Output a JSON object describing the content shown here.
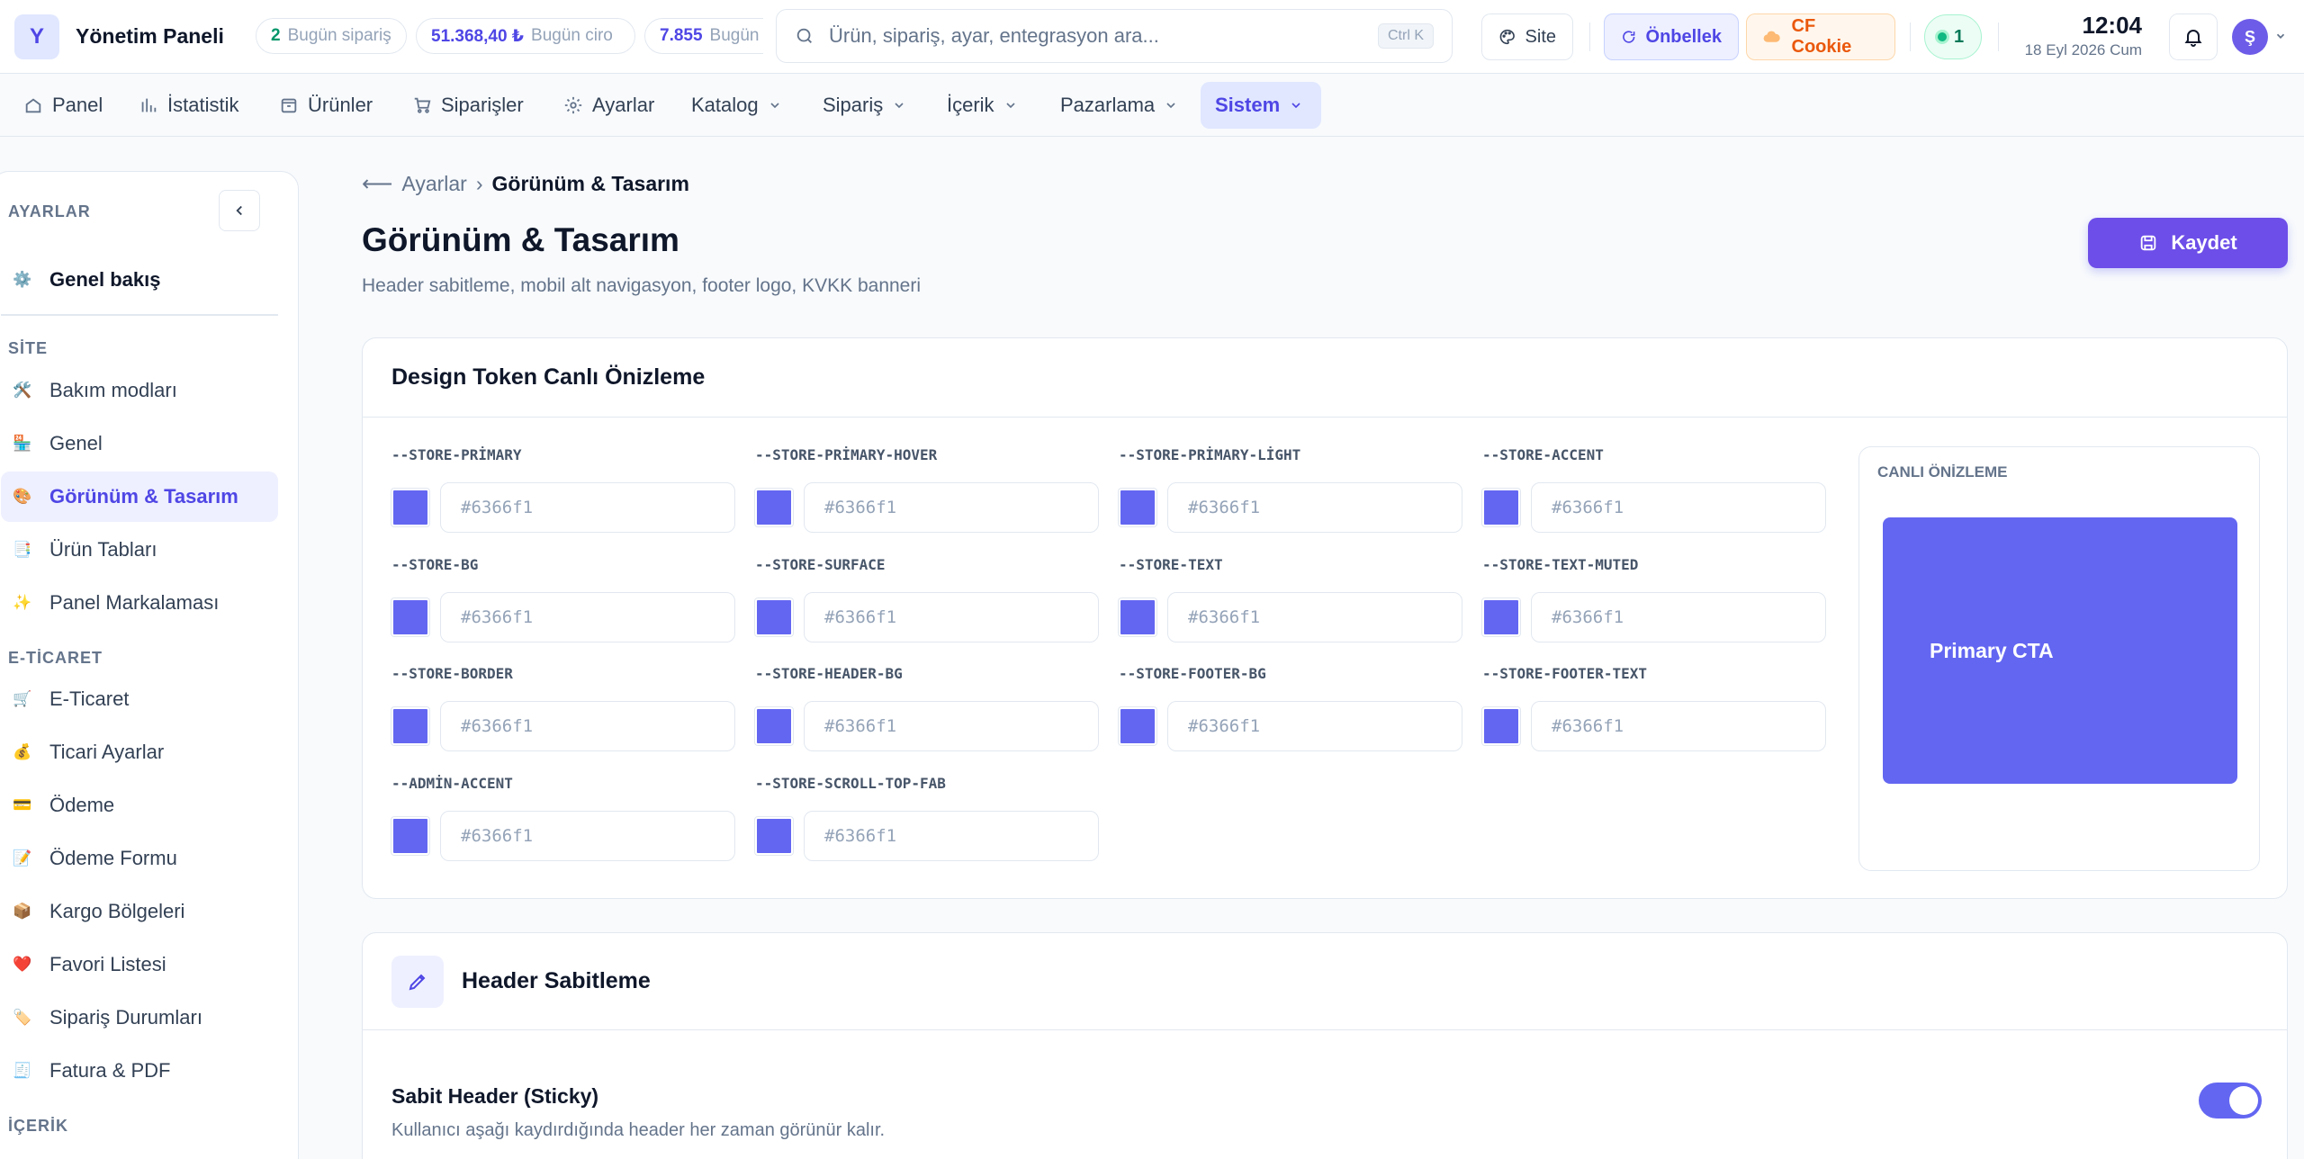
{
  "app": {
    "logo_letter": "Y",
    "title": "Yönetim Paneli"
  },
  "stats": [
    {
      "value": "2",
      "label": "Bugün sipariş",
      "color": "#059669"
    },
    {
      "value": "51.368,40 ₺",
      "label": "Bugün ciro",
      "color": "#4f46e5"
    },
    {
      "value": "7.855",
      "label": "Bugün",
      "color": "#4f46e5"
    }
  ],
  "search": {
    "placeholder": "Ürün, sipariş, ayar, entegrasyon ara...",
    "shortcut": "Ctrl K"
  },
  "toolbar": {
    "site": "Site",
    "cache": "Önbellek",
    "cf_cookie": "CF Cookie",
    "online_count": "1"
  },
  "clock": {
    "time": "12:04",
    "date": "18 Eyl 2026 Cum"
  },
  "user": {
    "avatar_letter": "Ş"
  },
  "nav": [
    {
      "label": "Panel",
      "icon": "home-icon"
    },
    {
      "label": "İstatistik",
      "icon": "stats-icon"
    },
    {
      "label": "Ürünler",
      "icon": "box-icon"
    },
    {
      "label": "Siparişler",
      "icon": "cart-icon"
    },
    {
      "label": "Ayarlar",
      "icon": "gear-icon"
    },
    {
      "label": "Katalog",
      "icon": "chevron-down-icon"
    },
    {
      "label": "Sipariş",
      "icon": "chevron-down-icon"
    },
    {
      "label": "İçerik",
      "icon": "chevron-down-icon"
    },
    {
      "label": "Pazarlama",
      "icon": "chevron-down-icon"
    },
    {
      "label": "Sistem",
      "icon": "chevron-down-icon"
    }
  ],
  "sidebar": {
    "header": "AYARLAR",
    "overview": {
      "label": "Genel bakış",
      "icon": "⚙️"
    },
    "sections": [
      {
        "title": "SİTE",
        "items": [
          {
            "label": "Bakım modları",
            "icon": "🛠️"
          },
          {
            "label": "Genel",
            "icon": "🏪"
          },
          {
            "label": "Görünüm & Tasarım",
            "icon": "🎨"
          },
          {
            "label": "Ürün Tabları",
            "icon": "📑"
          },
          {
            "label": "Panel Markalaması",
            "icon": "✨"
          }
        ]
      },
      {
        "title": "E-TİCARET",
        "items": [
          {
            "label": "E-Ticaret",
            "icon": "🛒"
          },
          {
            "label": "Ticari Ayarlar",
            "icon": "💰"
          },
          {
            "label": "Ödeme",
            "icon": "💳"
          },
          {
            "label": "Ödeme Formu",
            "icon": "📝"
          },
          {
            "label": "Kargo Bölgeleri",
            "icon": "📦"
          },
          {
            "label": "Favori Listesi",
            "icon": "❤️"
          },
          {
            "label": "Sipariş Durumları",
            "icon": "🏷️"
          },
          {
            "label": "Fatura & PDF",
            "icon": "🧾"
          }
        ]
      },
      {
        "title": "İÇERİK",
        "items": []
      }
    ]
  },
  "breadcrumb": {
    "back": "Ayarlar",
    "separator": "›",
    "current": "Görünüm & Tasarım"
  },
  "page": {
    "title": "Görünüm & Tasarım",
    "subtitle": "Header sabitleme, mobil alt navigasyon, footer logo, KVKK banneri",
    "save_label": "Kaydet"
  },
  "tokens_card": {
    "title": "Design Token Canlı Önizleme",
    "tokens": [
      {
        "name": "--STORE-PRİMARY",
        "value": "#6366f1"
      },
      {
        "name": "--STORE-PRİMARY-HOVER",
        "value": "#6366f1"
      },
      {
        "name": "--STORE-PRİMARY-LİGHT",
        "value": "#6366f1"
      },
      {
        "name": "--STORE-ACCENT",
        "value": "#6366f1"
      },
      {
        "name": "--STORE-BG",
        "value": "#6366f1"
      },
      {
        "name": "--STORE-SURFACE",
        "value": "#6366f1"
      },
      {
        "name": "--STORE-TEXT",
        "value": "#6366f1"
      },
      {
        "name": "--STORE-TEXT-MUTED",
        "value": "#6366f1"
      },
      {
        "name": "--STORE-BORDER",
        "value": "#6366f1"
      },
      {
        "name": "--STORE-HEADER-BG",
        "value": "#6366f1"
      },
      {
        "name": "--STORE-FOOTER-BG",
        "value": "#6366f1"
      },
      {
        "name": "--STORE-FOOTER-TEXT",
        "value": "#6366f1"
      },
      {
        "name": "--ADMİN-ACCENT",
        "value": "#6366f1"
      },
      {
        "name": "--STORE-SCROLL-TOP-FAB",
        "value": "#6366f1"
      }
    ],
    "preview_label": "CANLI ÖNİZLEME",
    "preview_cta": "Primary CTA"
  },
  "header_card": {
    "title": "Header Sabitleme",
    "option_title": "Sabit Header (Sticky)",
    "option_desc": "Kullanıcı aşağı kaydırdığında header her zaman görünür kalır.",
    "enabled": true
  },
  "colors": {
    "accent": "#6366f1",
    "brand": "#4f46e5",
    "save_button": "#6d4ee8"
  }
}
